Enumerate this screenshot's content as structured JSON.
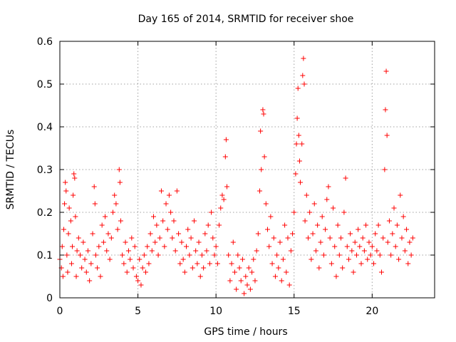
{
  "chart_data": {
    "type": "scatter",
    "title": "Day 165 of 2014, SRMTID for receiver shoe",
    "xlabel": "GPS time / hours",
    "ylabel": "SRMTID / TECUs",
    "xlim": [
      0,
      24
    ],
    "ylim": [
      0,
      0.6
    ],
    "xticks": [
      0,
      5,
      10,
      15,
      20
    ],
    "yticks": [
      0,
      0.1,
      0.2,
      0.3,
      0.4,
      0.5,
      0.6
    ],
    "xtick_labels": [
      "0",
      "5",
      "10",
      "15",
      "20"
    ],
    "ytick_labels": [
      "0",
      "0.1",
      "0.2",
      "0.3",
      "0.4",
      "0.5",
      "0.6"
    ],
    "grid": true,
    "marker": "+",
    "color": "#ff0000",
    "series": [
      {
        "name": "SRMTID",
        "points": [
          [
            0.0,
            0.09
          ],
          [
            0.1,
            0.07
          ],
          [
            0.15,
            0.12
          ],
          [
            0.2,
            0.05
          ],
          [
            0.25,
            0.16
          ],
          [
            0.3,
            0.22
          ],
          [
            0.35,
            0.27
          ],
          [
            0.4,
            0.25
          ],
          [
            0.45,
            0.1
          ],
          [
            0.5,
            0.06
          ],
          [
            0.55,
            0.15
          ],
          [
            0.6,
            0.21
          ],
          [
            0.7,
            0.18
          ],
          [
            0.75,
            0.08
          ],
          [
            0.8,
            0.12
          ],
          [
            0.85,
            0.24
          ],
          [
            0.9,
            0.29
          ],
          [
            0.95,
            0.28
          ],
          [
            1.0,
            0.19
          ],
          [
            1.05,
            0.05
          ],
          [
            1.1,
            0.11
          ],
          [
            1.2,
            0.14
          ],
          [
            1.3,
            0.1
          ],
          [
            1.4,
            0.07
          ],
          [
            1.5,
            0.13
          ],
          [
            1.6,
            0.09
          ],
          [
            1.7,
            0.06
          ],
          [
            1.8,
            0.11
          ],
          [
            1.9,
            0.04
          ],
          [
            2.0,
            0.08
          ],
          [
            2.1,
            0.15
          ],
          [
            2.2,
            0.26
          ],
          [
            2.25,
            0.22
          ],
          [
            2.3,
            0.1
          ],
          [
            2.4,
            0.07
          ],
          [
            2.5,
            0.12
          ],
          [
            2.6,
            0.05
          ],
          [
            2.7,
            0.17
          ],
          [
            2.8,
            0.13
          ],
          [
            2.9,
            0.19
          ],
          [
            3.0,
            0.11
          ],
          [
            3.1,
            0.15
          ],
          [
            3.2,
            0.09
          ],
          [
            3.3,
            0.14
          ],
          [
            3.4,
            0.2
          ],
          [
            3.5,
            0.24
          ],
          [
            3.6,
            0.22
          ],
          [
            3.7,
            0.16
          ],
          [
            3.8,
            0.3
          ],
          [
            3.85,
            0.27
          ],
          [
            3.9,
            0.18
          ],
          [
            4.0,
            0.1
          ],
          [
            4.1,
            0.08
          ],
          [
            4.2,
            0.13
          ],
          [
            4.3,
            0.06
          ],
          [
            4.4,
            0.11
          ],
          [
            4.5,
            0.09
          ],
          [
            4.6,
            0.14
          ],
          [
            4.7,
            0.07
          ],
          [
            4.8,
            0.12
          ],
          [
            4.9,
            0.05
          ],
          [
            5.0,
            0.04
          ],
          [
            5.1,
            0.09
          ],
          [
            5.2,
            0.03
          ],
          [
            5.3,
            0.07
          ],
          [
            5.4,
            0.1
          ],
          [
            5.5,
            0.06
          ],
          [
            5.6,
            0.12
          ],
          [
            5.7,
            0.08
          ],
          [
            5.8,
            0.15
          ],
          [
            5.9,
            0.11
          ],
          [
            6.0,
            0.19
          ],
          [
            6.1,
            0.13
          ],
          [
            6.2,
            0.17
          ],
          [
            6.3,
            0.1
          ],
          [
            6.4,
            0.14
          ],
          [
            6.5,
            0.25
          ],
          [
            6.6,
            0.18
          ],
          [
            6.7,
            0.12
          ],
          [
            6.8,
            0.22
          ],
          [
            6.9,
            0.16
          ],
          [
            7.0,
            0.24
          ],
          [
            7.1,
            0.2
          ],
          [
            7.2,
            0.14
          ],
          [
            7.3,
            0.18
          ],
          [
            7.4,
            0.11
          ],
          [
            7.5,
            0.25
          ],
          [
            7.6,
            0.15
          ],
          [
            7.7,
            0.08
          ],
          [
            7.8,
            0.13
          ],
          [
            7.9,
            0.09
          ],
          [
            8.0,
            0.06
          ],
          [
            8.1,
            0.12
          ],
          [
            8.2,
            0.16
          ],
          [
            8.3,
            0.1
          ],
          [
            8.4,
            0.14
          ],
          [
            8.5,
            0.07
          ],
          [
            8.6,
            0.18
          ],
          [
            8.7,
            0.11
          ],
          [
            8.8,
            0.08
          ],
          [
            8.9,
            0.13
          ],
          [
            9.0,
            0.05
          ],
          [
            9.1,
            0.1
          ],
          [
            9.2,
            0.07
          ],
          [
            9.3,
            0.15
          ],
          [
            9.4,
            0.11
          ],
          [
            9.5,
            0.17
          ],
          [
            9.6,
            0.08
          ],
          [
            9.7,
            0.2
          ],
          [
            9.8,
            0.14
          ],
          [
            9.9,
            0.1
          ],
          [
            10.0,
            0.12
          ],
          [
            10.1,
            0.08
          ],
          [
            10.2,
            0.17
          ],
          [
            10.3,
            0.21
          ],
          [
            10.4,
            0.24
          ],
          [
            10.5,
            0.23
          ],
          [
            10.6,
            0.33
          ],
          [
            10.65,
            0.37
          ],
          [
            10.7,
            0.26
          ],
          [
            10.8,
            0.1
          ],
          [
            10.9,
            0.04
          ],
          [
            11.0,
            0.08
          ],
          [
            11.1,
            0.13
          ],
          [
            11.2,
            0.06
          ],
          [
            11.3,
            0.02
          ],
          [
            11.4,
            0.1
          ],
          [
            11.5,
            0.07
          ],
          [
            11.6,
            0.04
          ],
          [
            11.7,
            0.09
          ],
          [
            11.8,
            0.01
          ],
          [
            11.9,
            0.05
          ],
          [
            12.0,
            0.03
          ],
          [
            12.1,
            0.07
          ],
          [
            12.2,
            0.02
          ],
          [
            12.3,
            0.06
          ],
          [
            12.4,
            0.09
          ],
          [
            12.5,
            0.04
          ],
          [
            12.6,
            0.11
          ],
          [
            12.7,
            0.15
          ],
          [
            12.8,
            0.25
          ],
          [
            12.85,
            0.39
          ],
          [
            12.9,
            0.3
          ],
          [
            13.0,
            0.44
          ],
          [
            13.05,
            0.43
          ],
          [
            13.1,
            0.33
          ],
          [
            13.2,
            0.22
          ],
          [
            13.3,
            0.16
          ],
          [
            13.4,
            0.12
          ],
          [
            13.5,
            0.19
          ],
          [
            13.6,
            0.08
          ],
          [
            13.7,
            0.14
          ],
          [
            13.8,
            0.05
          ],
          [
            13.9,
            0.1
          ],
          [
            14.0,
            0.07
          ],
          [
            14.1,
            0.13
          ],
          [
            14.2,
            0.04
          ],
          [
            14.3,
            0.09
          ],
          [
            14.4,
            0.17
          ],
          [
            14.5,
            0.06
          ],
          [
            14.6,
            0.14
          ],
          [
            14.7,
            0.03
          ],
          [
            14.8,
            0.11
          ],
          [
            14.9,
            0.15
          ],
          [
            15.0,
            0.2
          ],
          [
            15.1,
            0.29
          ],
          [
            15.15,
            0.36
          ],
          [
            15.2,
            0.42
          ],
          [
            15.25,
            0.49
          ],
          [
            15.3,
            0.38
          ],
          [
            15.35,
            0.32
          ],
          [
            15.4,
            0.27
          ],
          [
            15.5,
            0.36
          ],
          [
            15.55,
            0.52
          ],
          [
            15.6,
            0.56
          ],
          [
            15.65,
            0.5
          ],
          [
            15.7,
            0.18
          ],
          [
            15.8,
            0.24
          ],
          [
            15.9,
            0.14
          ],
          [
            16.0,
            0.2
          ],
          [
            16.1,
            0.09
          ],
          [
            16.2,
            0.15
          ],
          [
            16.3,
            0.22
          ],
          [
            16.4,
            0.11
          ],
          [
            16.5,
            0.17
          ],
          [
            16.6,
            0.07
          ],
          [
            16.7,
            0.13
          ],
          [
            16.8,
            0.19
          ],
          [
            16.9,
            0.1
          ],
          [
            17.0,
            0.16
          ],
          [
            17.1,
            0.23
          ],
          [
            17.2,
            0.26
          ],
          [
            17.3,
            0.14
          ],
          [
            17.4,
            0.08
          ],
          [
            17.5,
            0.21
          ],
          [
            17.6,
            0.12
          ],
          [
            17.7,
            0.05
          ],
          [
            17.8,
            0.17
          ],
          [
            17.9,
            0.1
          ],
          [
            18.0,
            0.14
          ],
          [
            18.1,
            0.07
          ],
          [
            18.2,
            0.2
          ],
          [
            18.3,
            0.28
          ],
          [
            18.4,
            0.12
          ],
          [
            18.5,
            0.09
          ],
          [
            18.6,
            0.15
          ],
          [
            18.7,
            0.11
          ],
          [
            18.8,
            0.06
          ],
          [
            18.9,
            0.13
          ],
          [
            19.0,
            0.1
          ],
          [
            19.1,
            0.16
          ],
          [
            19.2,
            0.12
          ],
          [
            19.3,
            0.08
          ],
          [
            19.4,
            0.14
          ],
          [
            19.5,
            0.11
          ],
          [
            19.6,
            0.17
          ],
          [
            19.7,
            0.09
          ],
          [
            19.8,
            0.13
          ],
          [
            19.9,
            0.1
          ],
          [
            20.0,
            0.12
          ],
          [
            20.1,
            0.08
          ],
          [
            20.2,
            0.15
          ],
          [
            20.3,
            0.11
          ],
          [
            20.4,
            0.17
          ],
          [
            20.5,
            0.1
          ],
          [
            20.6,
            0.06
          ],
          [
            20.7,
            0.14
          ],
          [
            20.8,
            0.3
          ],
          [
            20.85,
            0.44
          ],
          [
            20.9,
            0.53
          ],
          [
            20.95,
            0.38
          ],
          [
            21.0,
            0.13
          ],
          [
            21.1,
            0.18
          ],
          [
            21.2,
            0.1
          ],
          [
            21.3,
            0.15
          ],
          [
            21.4,
            0.21
          ],
          [
            21.5,
            0.12
          ],
          [
            21.6,
            0.17
          ],
          [
            21.7,
            0.09
          ],
          [
            21.8,
            0.24
          ],
          [
            21.9,
            0.14
          ],
          [
            22.0,
            0.19
          ],
          [
            22.1,
            0.11
          ],
          [
            22.2,
            0.16
          ],
          [
            22.3,
            0.08
          ],
          [
            22.4,
            0.13
          ],
          [
            22.5,
            0.1
          ],
          [
            22.6,
            0.14
          ]
        ]
      }
    ]
  }
}
